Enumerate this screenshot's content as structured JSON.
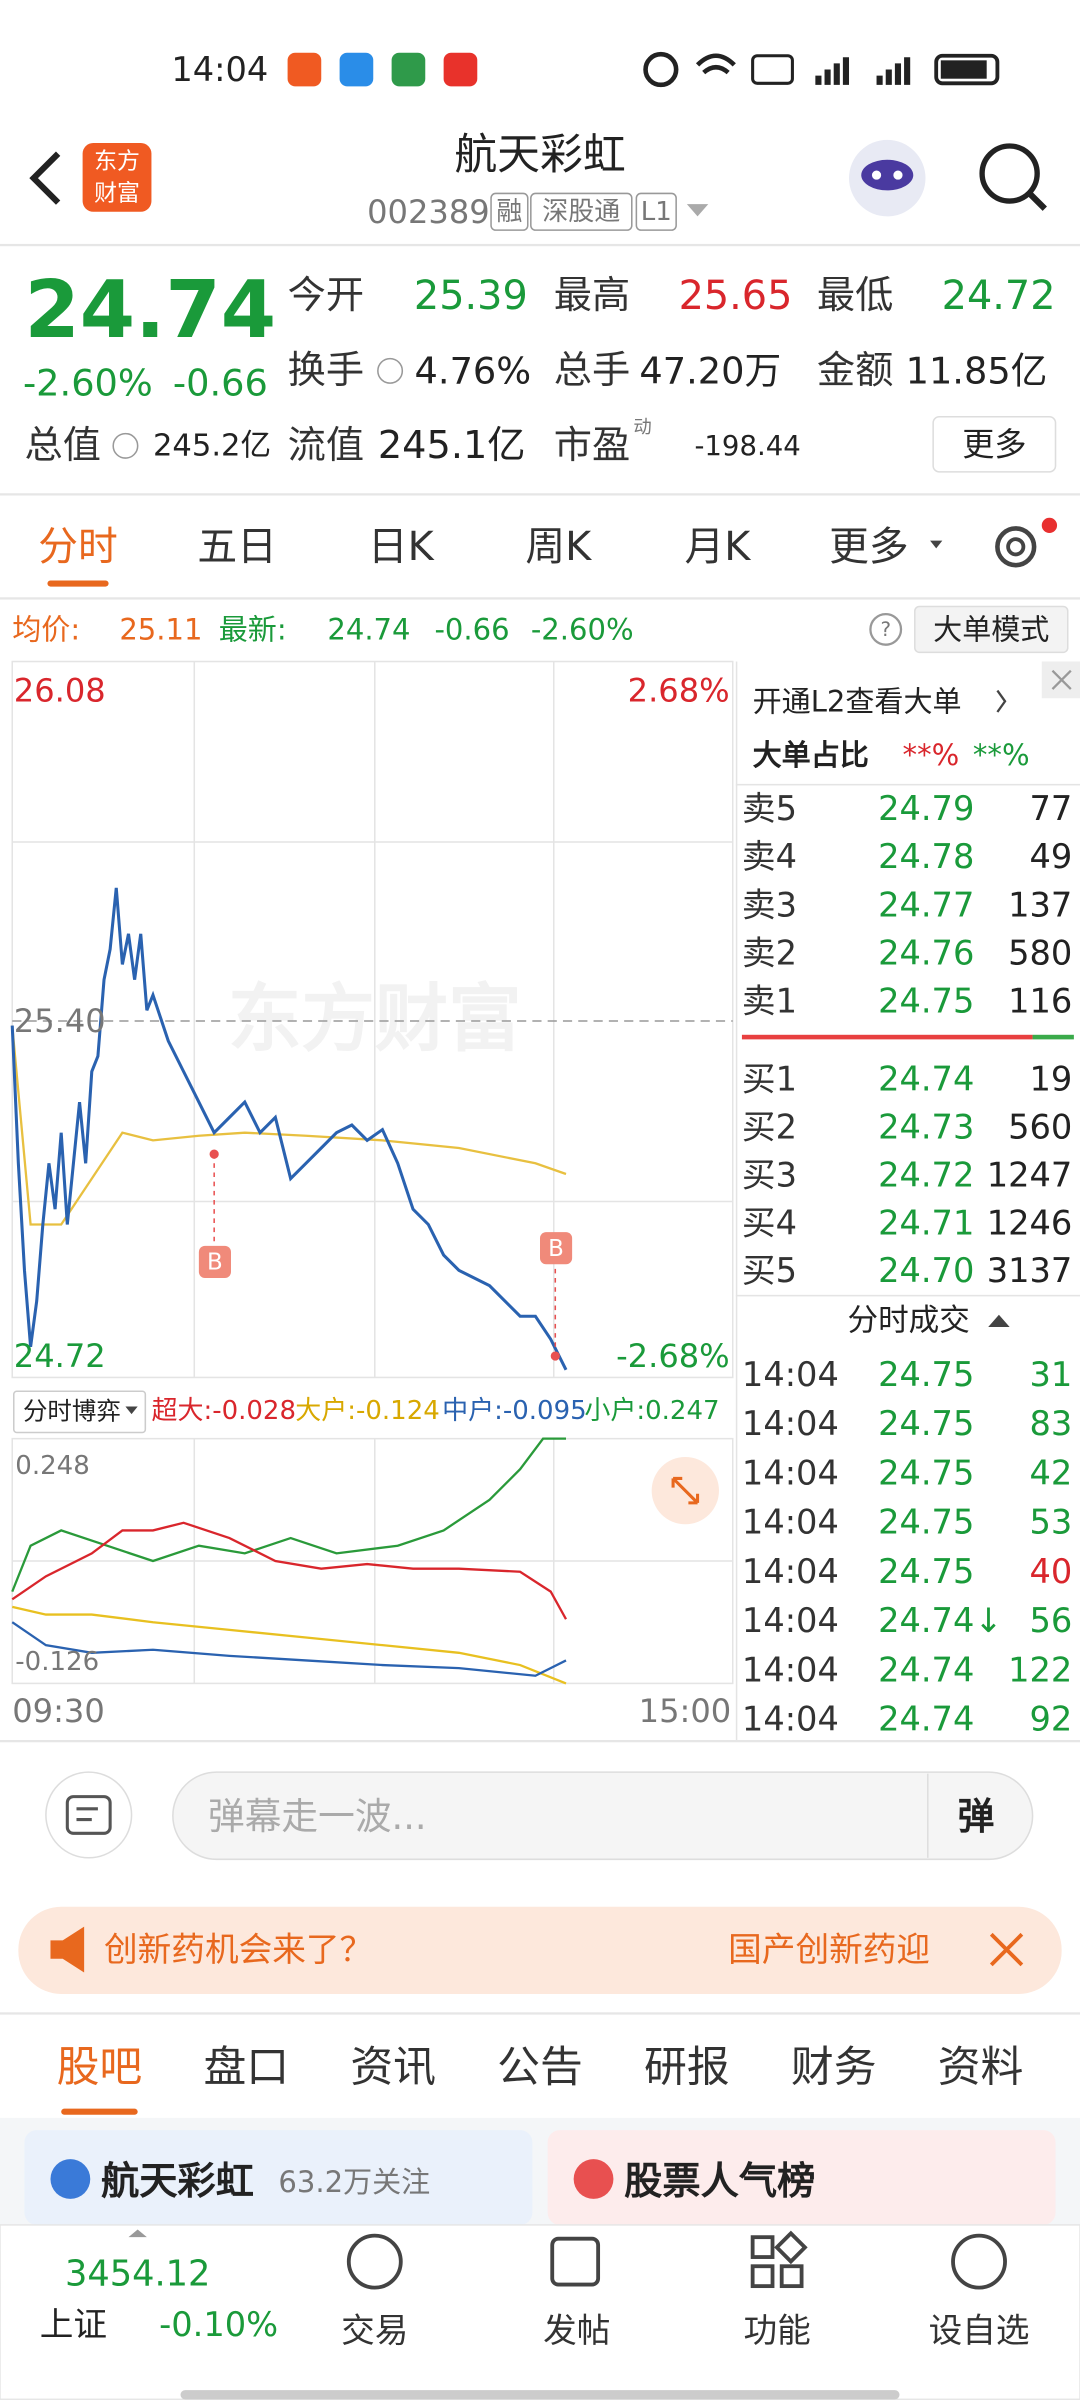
{
  "status_bar": {
    "time": "14:04"
  },
  "header": {
    "logo": [
      "东方",
      "财富"
    ],
    "title": "航天彩虹",
    "code": "002389",
    "tags": [
      "融",
      "深股通",
      "L1"
    ]
  },
  "quote": {
    "price": "24.74",
    "change_pct": "-2.60%",
    "change": "-0.66",
    "stats": [
      {
        "label": "今开",
        "value": "25.39"
      },
      {
        "label": "最高",
        "value": "25.65"
      },
      {
        "label": "最低",
        "value": "24.72"
      },
      {
        "label": "换手",
        "value": "4.76%"
      },
      {
        "label": "总手",
        "value": "47.20万"
      },
      {
        "label": "金额",
        "value": "11.85亿"
      },
      {
        "label": "总值",
        "value": "245.2亿"
      },
      {
        "label": "流值",
        "value": "245.1亿"
      },
      {
        "label": "市盈",
        "value": "-198.44"
      }
    ],
    "pe_tag": "动",
    "more": "更多"
  },
  "tabs": [
    "分时",
    "五日",
    "日K",
    "周K",
    "月K",
    "更多"
  ],
  "info": {
    "avg_label": "均价:",
    "avg": "25.11",
    "latest_label": "最新:",
    "latest": "24.74",
    "change": "-0.66",
    "pct": "-2.60%",
    "mode": "大单模式"
  },
  "chart": {
    "high": "26.08",
    "high_pct": "2.68%",
    "low": "24.72",
    "low_pct": "-2.68%",
    "ref": "25.40",
    "watermark": "东方财富",
    "markers": [
      "B",
      "B"
    ],
    "start": "09:30",
    "end": "15:00"
  },
  "sub": {
    "selector": "分时博弈",
    "items": [
      "超大:-0.028",
      "大户:-0.124",
      "中户:-0.095",
      "小户:0.247"
    ],
    "max": "0.248",
    "min": "-0.126"
  },
  "book": {
    "l2": "开通L2查看大单",
    "ratio_label": "大单占比",
    "ratio_values": [
      "**%",
      "**%"
    ],
    "asks": [
      {
        "label": "卖5",
        "price": "24.79",
        "volume": "77"
      },
      {
        "label": "卖4",
        "price": "24.78",
        "volume": "49"
      },
      {
        "label": "卖3",
        "price": "24.77",
        "volume": "137"
      },
      {
        "label": "卖2",
        "price": "24.76",
        "volume": "580"
      },
      {
        "label": "卖1",
        "price": "24.75",
        "volume": "116"
      }
    ],
    "bids": [
      {
        "label": "买1",
        "price": "24.74",
        "volume": "19"
      },
      {
        "label": "买2",
        "price": "24.73",
        "volume": "560"
      },
      {
        "label": "买3",
        "price": "24.72",
        "volume": "1247"
      },
      {
        "label": "买4",
        "price": "24.71",
        "volume": "1246"
      },
      {
        "label": "买5",
        "price": "24.70",
        "volume": "3137"
      }
    ],
    "trades_title": "分时成交",
    "trades": [
      {
        "time": "14:04",
        "price": "24.75",
        "volume": "31",
        "color": "#1a9a3a"
      },
      {
        "time": "14:04",
        "price": "24.75",
        "volume": "83",
        "color": "#1a9a3a"
      },
      {
        "time": "14:04",
        "price": "24.75",
        "volume": "42",
        "color": "#1a9a3a"
      },
      {
        "time": "14:04",
        "price": "24.75",
        "volume": "53",
        "color": "#1a9a3a"
      },
      {
        "time": "14:04",
        "price": "24.75",
        "volume": "40",
        "color": "#d9262c"
      },
      {
        "time": "14:04",
        "price": "24.74↓",
        "volume": "56",
        "color": "#1a9a3a"
      },
      {
        "time": "14:04",
        "price": "24.74",
        "volume": "122",
        "color": "#1a9a3a"
      },
      {
        "time": "14:04",
        "price": "24.74",
        "volume": "92",
        "color": "#1a9a3a"
      }
    ]
  },
  "danmu": {
    "placeholder": "弹幕走一波...",
    "button": "弹"
  },
  "banner": {
    "left": "创新药机会来了？",
    "right": "国产创新药迎"
  },
  "bottom_tabs": [
    "股吧",
    "盘口",
    "资讯",
    "公告",
    "研报",
    "财务",
    "资料"
  ],
  "cards": [
    {
      "title": "航天彩虹",
      "sub": "63.2万关注"
    },
    {
      "title": "股票人气榜"
    }
  ],
  "nav": {
    "index_value": "3454.12",
    "index_name": "上证",
    "index_change": "-0.10%",
    "items": [
      "交易",
      "发帖",
      "功能",
      "设自选"
    ]
  }
}
